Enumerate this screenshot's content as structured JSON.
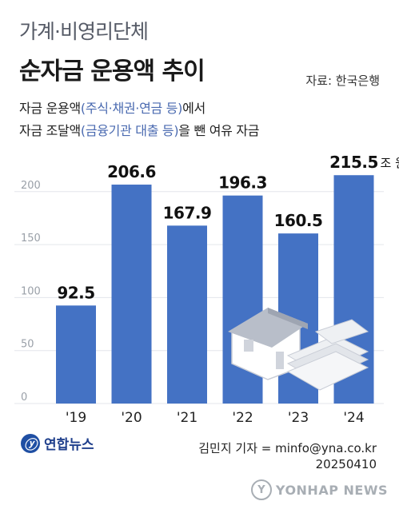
{
  "header": {
    "subtitle": "가계·비영리단체",
    "title": "순자금 운용액 추이",
    "source": "자료: 한국은행"
  },
  "description": {
    "line1_a": "자금 운용액",
    "line1_paren": "(주식·채권·연금 등)",
    "line1_b": "에서",
    "line2_a": "자금 조달액",
    "line2_paren": "(금융기관 대출 등)",
    "line2_b": "을 뺀 여유 자금"
  },
  "chart_data": {
    "type": "bar",
    "categories": [
      "'19",
      "'20",
      "'21",
      "'22",
      "'23",
      "'24"
    ],
    "values": [
      92.5,
      206.6,
      167.9,
      196.3,
      160.5,
      215.5
    ],
    "value_labels": [
      "92.5",
      "206.6",
      "167.9",
      "196.3",
      "160.5",
      "215.5"
    ],
    "unit": "조 원",
    "yticks": [
      0,
      50,
      100,
      150,
      200
    ],
    "ylim": [
      0,
      230
    ],
    "bar_color": "#4472c4",
    "gridlines": true
  },
  "footer": {
    "logo_mark": "ⓨ",
    "logo_text": "연합뉴스",
    "credit": "김민지 기자 = minfo@yna.co.kr",
    "date": "20250410",
    "watermark_mark": "Y",
    "watermark_text": "YONHAP NEWS"
  }
}
